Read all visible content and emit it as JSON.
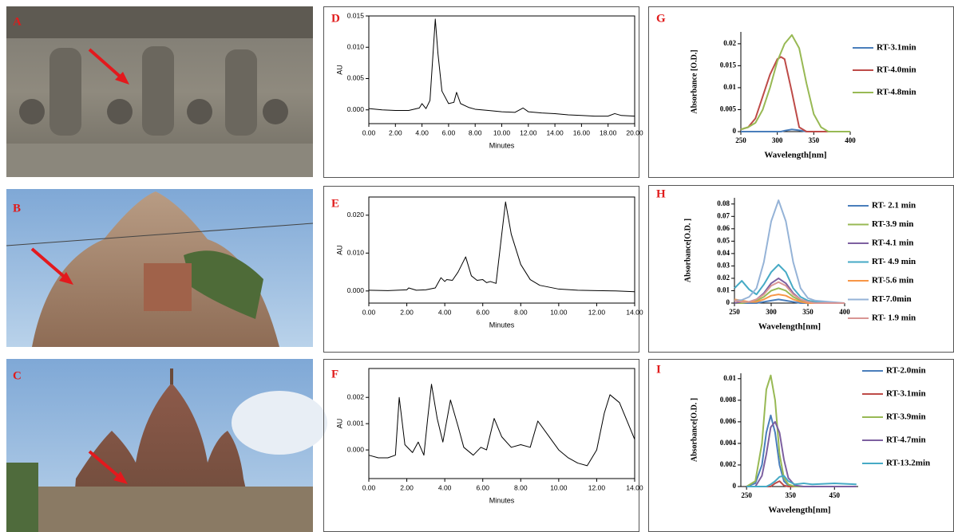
{
  "photos": [
    {
      "label": "A"
    },
    {
      "label": "B"
    },
    {
      "label": "C"
    }
  ],
  "chart_data": [
    {
      "type": "line",
      "label": "D",
      "x_label": "Minutes",
      "y_label": "AU",
      "x": [
        0,
        1,
        2,
        3,
        3.8,
        4.0,
        4.3,
        4.6,
        4.8,
        5.0,
        5.2,
        5.5,
        6.0,
        6.4,
        6.6,
        6.9,
        7.5,
        8,
        9,
        10,
        11,
        11.6,
        12,
        13,
        14,
        15,
        16,
        17,
        18,
        18.5,
        19,
        20
      ],
      "series": [
        {
          "color": "#000000",
          "values": [
            0.0002,
            0,
            -0.0001,
            -0.0001,
            0.0003,
            0.001,
            0.0002,
            0.0015,
            0.008,
            0.0145,
            0.009,
            0.003,
            0.001,
            0.0012,
            0.0028,
            0.001,
            0.0004,
            0.0001,
            -0.0001,
            -0.0003,
            -0.0004,
            0.0003,
            -0.0003,
            -0.0005,
            -0.0006,
            -0.0008,
            -0.0009,
            -0.001,
            -0.001,
            -0.0006,
            -0.0009,
            -0.001
          ]
        }
      ],
      "xlim": [
        0,
        20
      ],
      "xticks": [
        {
          "value": 0,
          "label": "0.00"
        },
        {
          "value": 2,
          "label": "2.00"
        },
        {
          "value": 4,
          "label": "4.00"
        },
        {
          "value": 6,
          "label": "6.00"
        },
        {
          "value": 8,
          "label": "8.00"
        },
        {
          "value": 10,
          "label": "10.00"
        },
        {
          "value": 12,
          "label": "12.00"
        },
        {
          "value": 14,
          "label": "14.00"
        },
        {
          "value": 16,
          "label": "16.00"
        },
        {
          "value": 18,
          "label": "18.00"
        },
        {
          "value": 20,
          "label": "20.00"
        }
      ],
      "ylim": [
        -0.0022,
        0.015
      ],
      "yticks": [
        {
          "value": 0,
          "label": "0.000"
        },
        {
          "value": 0.005,
          "label": "0.005"
        },
        {
          "value": 0.01,
          "label": "0.010"
        },
        {
          "value": 0.015,
          "label": "0.015"
        }
      ]
    },
    {
      "type": "line",
      "label": "E",
      "x_label": "Minutes",
      "y_label": "AU",
      "x": [
        0,
        1,
        2,
        2.1,
        2.5,
        3,
        3.5,
        3.8,
        4.0,
        4.1,
        4.4,
        4.7,
        5.1,
        5.4,
        5.7,
        6.0,
        6.2,
        6.4,
        6.7,
        7.0,
        7.2,
        7.5,
        8.0,
        8.5,
        9,
        10,
        11,
        12,
        13,
        14
      ],
      "series": [
        {
          "color": "#000000",
          "values": [
            0.0002,
            0.0001,
            0.0003,
            0.0008,
            0.0002,
            0.0003,
            0.0008,
            0.0035,
            0.0025,
            0.003,
            0.0028,
            0.005,
            0.009,
            0.004,
            0.0028,
            0.003,
            0.0022,
            0.0025,
            0.002,
            0.015,
            0.0235,
            0.015,
            0.007,
            0.003,
            0.0015,
            0.0005,
            0.0002,
            0.0001,
            0,
            -0.0002
          ]
        }
      ],
      "xlim": [
        0,
        14
      ],
      "xticks": [
        {
          "value": 0,
          "label": "0.00"
        },
        {
          "value": 2,
          "label": "2.00"
        },
        {
          "value": 4,
          "label": "4.00"
        },
        {
          "value": 6,
          "label": "6.00"
        },
        {
          "value": 8,
          "label": "8.00"
        },
        {
          "value": 10,
          "label": "10.00"
        },
        {
          "value": 12,
          "label": "12.00"
        },
        {
          "value": 14,
          "label": "14.00"
        }
      ],
      "ylim": [
        -0.0032,
        0.0248
      ],
      "yticks": [
        {
          "value": 0,
          "label": "0.000"
        },
        {
          "value": 0.01,
          "label": "0.010"
        },
        {
          "value": 0.02,
          "label": "0.020"
        }
      ]
    },
    {
      "type": "line",
      "label": "F",
      "x_label": "Minutes",
      "y_label": "AU",
      "x": [
        0,
        0.5,
        1.0,
        1.4,
        1.6,
        1.9,
        2.3,
        2.6,
        2.9,
        3.1,
        3.3,
        3.6,
        3.9,
        4.3,
        4.7,
        5.0,
        5.5,
        5.9,
        6.2,
        6.6,
        7.0,
        7.5,
        8.0,
        8.5,
        8.9,
        9.4,
        10,
        10.5,
        11,
        11.5,
        12,
        12.4,
        12.7,
        13.2,
        13.6,
        14
      ],
      "series": [
        {
          "color": "#000000",
          "values": [
            -0.0002,
            -0.0003,
            -0.0003,
            -0.0002,
            0.002,
            0.0002,
            -0.0001,
            0.0003,
            -0.0002,
            0.0012,
            0.0025,
            0.0012,
            0.0003,
            0.0019,
            0.0009,
            0.0001,
            -0.0002,
            0.0001,
            0,
            0.0012,
            0.0005,
            0.0001,
            0.0002,
            0.0001,
            0.0011,
            0.0006,
            0,
            -0.0003,
            -0.0005,
            -0.0006,
            0,
            0.0014,
            0.0021,
            0.0018,
            0.0011,
            0.0004
          ]
        }
      ],
      "xlim": [
        0,
        14
      ],
      "xticks": [
        {
          "value": 0,
          "label": "0.00"
        },
        {
          "value": 2,
          "label": "2.00"
        },
        {
          "value": 4,
          "label": "4.00"
        },
        {
          "value": 6,
          "label": "6.00"
        },
        {
          "value": 8,
          "label": "8.00"
        },
        {
          "value": 10,
          "label": "10.00"
        },
        {
          "value": 12,
          "label": "12.00"
        },
        {
          "value": 14,
          "label": "14.00"
        }
      ],
      "ylim": [
        -0.00109,
        0.0031
      ],
      "yticks": [
        {
          "value": 0,
          "label": "0.000"
        },
        {
          "value": 0.001,
          "label": "0.001"
        },
        {
          "value": 0.002,
          "label": "0.002"
        }
      ]
    },
    {
      "type": "line",
      "label": "G",
      "x_label": "Wavelength[nm]",
      "y_label": "Absorbance [O.D.]",
      "legend": "right",
      "x": [
        250,
        260,
        270,
        280,
        290,
        300,
        305,
        310,
        320,
        330,
        340,
        350,
        360,
        370,
        380,
        390,
        400
      ],
      "series": [
        {
          "name": "RT-3.1min",
          "color": "#4a7ebb",
          "values": [
            0,
            0,
            0,
            0,
            0,
            0,
            0,
            0.0002,
            0.0005,
            0.0003,
            0,
            0,
            0,
            0,
            0,
            0,
            0
          ]
        },
        {
          "name": "RT-4.0min",
          "color": "#be4b48",
          "values": [
            0.0005,
            0.001,
            0.003,
            0.008,
            0.013,
            0.0165,
            0.017,
            0.0165,
            0.009,
            0.001,
            0,
            0,
            0,
            0,
            0,
            0,
            0
          ]
        },
        {
          "name": "RT-4.8min",
          "color": "#98b954",
          "values": [
            0.0005,
            0.001,
            0.002,
            0.005,
            0.01,
            0.016,
            0.018,
            0.02,
            0.022,
            0.019,
            0.011,
            0.004,
            0.001,
            0,
            0,
            0,
            0
          ]
        }
      ],
      "xlim": [
        250,
        400
      ],
      "xticks": [
        250,
        300,
        350,
        400
      ],
      "ylim": [
        0,
        0.0227
      ],
      "yticks": [
        0,
        0.005,
        0.01,
        0.015,
        0.02
      ]
    },
    {
      "type": "line",
      "label": "H",
      "x_label": "Wavelength[nm]",
      "y_label": "Absorbance[O.D. ]",
      "legend": "right",
      "x": [
        250,
        260,
        270,
        280,
        290,
        300,
        310,
        320,
        330,
        340,
        350,
        360,
        380,
        400
      ],
      "series": [
        {
          "name": "RT- 2.1 min",
          "color": "#4a7ebb",
          "values": [
            0,
            0,
            0,
            0,
            0.001,
            0.002,
            0.003,
            0.002,
            0.001,
            0,
            0,
            0,
            0,
            0
          ]
        },
        {
          "name": "RT-3.9 min",
          "color": "#98b954",
          "values": [
            0,
            0,
            0.001,
            0.002,
            0.005,
            0.01,
            0.012,
            0.01,
            0.005,
            0.002,
            0.001,
            0,
            0,
            0
          ]
        },
        {
          "name": "RT-4.1 min",
          "color": "#7d60a0",
          "values": [
            0,
            0.001,
            0.001,
            0.003,
            0.008,
            0.016,
            0.02,
            0.016,
            0.008,
            0.003,
            0.001,
            0,
            0,
            0
          ]
        },
        {
          "name": "RT- 4.9 min",
          "color": "#46aac5",
          "values": [
            0.012,
            0.018,
            0.011,
            0.007,
            0.015,
            0.025,
            0.031,
            0.025,
            0.012,
            0.005,
            0.002,
            0.001,
            0,
            0
          ]
        },
        {
          "name": "RT-5.6 min",
          "color": "#f79646",
          "values": [
            0.003,
            0.002,
            0.001,
            0.001,
            0.003,
            0.006,
            0.007,
            0.006,
            0.003,
            0.001,
            0,
            0,
            0,
            0
          ]
        },
        {
          "name": "RT-7.0min",
          "color": "#95b3d7",
          "values": [
            0.002,
            0.0025,
            0.005,
            0.012,
            0.033,
            0.066,
            0.083,
            0.066,
            0.033,
            0.012,
            0.004,
            0.002,
            0.001,
            0
          ]
        },
        {
          "name": "RT- 1.9 min",
          "color": "#d99694",
          "values": [
            0.002,
            0.001,
            0.001,
            0.003,
            0.007,
            0.014,
            0.017,
            0.014,
            0.007,
            0.003,
            0.001,
            0,
            0,
            0
          ]
        }
      ],
      "xlim": [
        250,
        400
      ],
      "xticks": [
        250,
        300,
        350,
        400
      ],
      "ylim": [
        0,
        0.085
      ],
      "yticks": [
        0,
        0.01,
        0.02,
        0.03,
        0.04,
        0.05,
        0.06,
        0.07,
        0.08
      ]
    },
    {
      "type": "line",
      "label": "I",
      "x_label": "Wavelength[nm]",
      "y_label": "Absorbance[O.D. ]",
      "legend": "right",
      "x": [
        250,
        270,
        285,
        295,
        305,
        315,
        325,
        335,
        345,
        360,
        380,
        400,
        450,
        500
      ],
      "series": [
        {
          "name": "RT-2.0min",
          "color": "#4a7ebb",
          "values": [
            0,
            0.0003,
            0.002,
            0.005,
            0.0066,
            0.005,
            0.002,
            0.0005,
            0.0001,
            0,
            0,
            0,
            0,
            0
          ]
        },
        {
          "name": "RT-3.1min",
          "color": "#be4b48",
          "values": [
            0,
            0,
            0,
            0,
            0,
            0.0003,
            0.0005,
            0.0001,
            0,
            0,
            0,
            0,
            0,
            0
          ]
        },
        {
          "name": "RT-3.9min",
          "color": "#98b954",
          "values": [
            0,
            0.0005,
            0.004,
            0.009,
            0.0103,
            0.008,
            0.003,
            0.0008,
            0.0002,
            0,
            0,
            0,
            0,
            0
          ]
        },
        {
          "name": "RT-4.7min",
          "color": "#7d60a0",
          "values": [
            0,
            0,
            0.001,
            0.003,
            0.0055,
            0.006,
            0.005,
            0.0025,
            0.0008,
            0.0001,
            0,
            0,
            0,
            0
          ]
        },
        {
          "name": "RT-13.2min",
          "color": "#46aac5",
          "values": [
            0,
            0,
            0,
            0,
            0.0002,
            0.0005,
            0.0009,
            0.001,
            0.0005,
            0.0002,
            0.0003,
            0.0002,
            0.0003,
            0.0002
          ]
        }
      ],
      "xlim": [
        237,
        504
      ],
      "xticks": [
        250,
        350,
        450
      ],
      "ylim": [
        0,
        0.0105
      ],
      "yticks": [
        0,
        0.002,
        0.004,
        0.006,
        0.008,
        0.01
      ]
    }
  ]
}
